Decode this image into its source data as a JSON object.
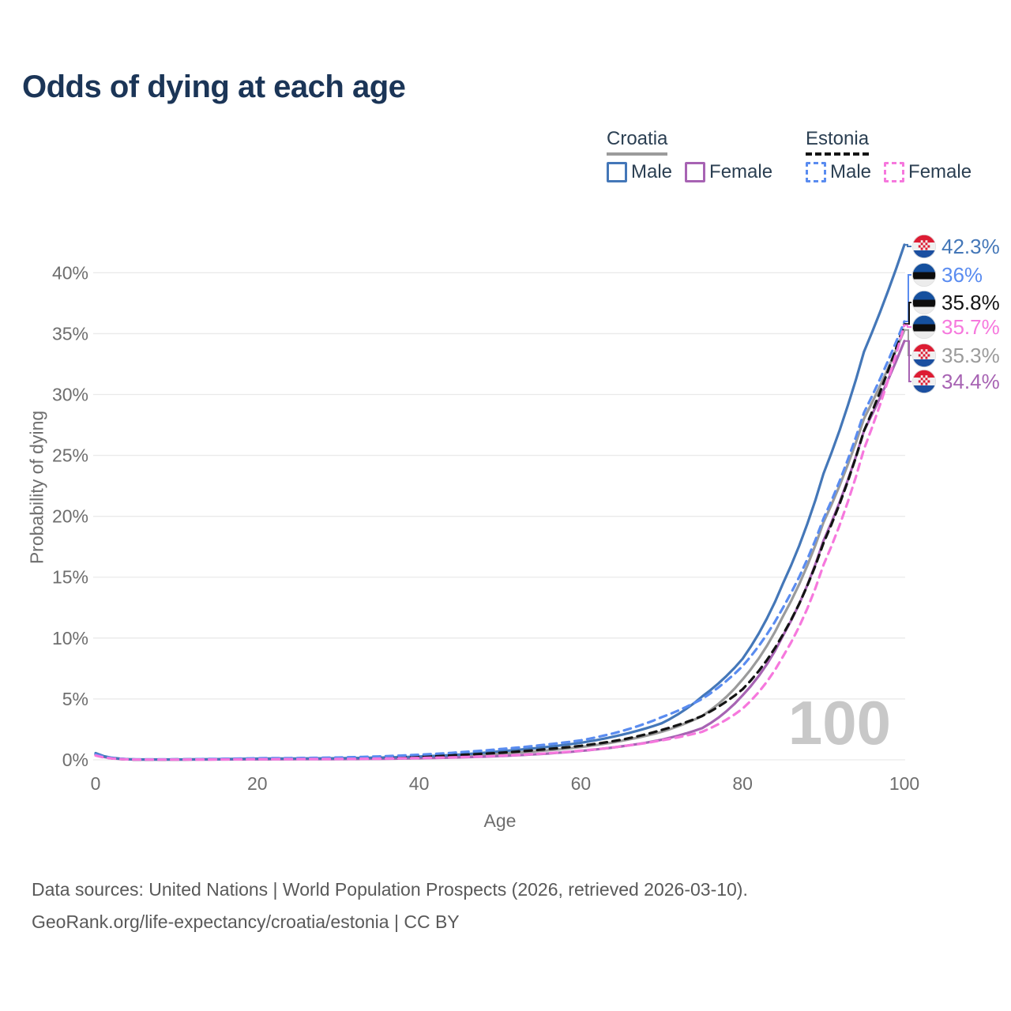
{
  "title": "Odds of dying at each age",
  "legend": {
    "groups": [
      {
        "country": "Croatia",
        "line_style": "solid",
        "line_color": "#9b9b9b",
        "items": [
          {
            "label": "Male",
            "color": "#4477b8"
          },
          {
            "label": "Female",
            "color": "#a763b3"
          }
        ]
      },
      {
        "country": "Estonia",
        "line_style": "dashed",
        "line_color": "#141414",
        "items": [
          {
            "label": "Male",
            "color": "#5a8cf0"
          },
          {
            "label": "Female",
            "color": "#f678dd"
          }
        ]
      }
    ]
  },
  "chart_data": {
    "type": "line",
    "title": "Odds of dying at each age",
    "xlabel": "Age",
    "ylabel": "Probability of dying",
    "xlim": [
      0,
      100
    ],
    "ylim_pct": [
      0,
      45
    ],
    "x_ticks": [
      0,
      20,
      40,
      60,
      80,
      100
    ],
    "y_ticks": [
      {
        "value": 0,
        "label": "0%"
      },
      {
        "value": 5,
        "label": "5%"
      },
      {
        "value": 10,
        "label": "10%"
      },
      {
        "value": 15,
        "label": "15%"
      },
      {
        "value": 20,
        "label": "20%"
      },
      {
        "value": 25,
        "label": "25%"
      },
      {
        "value": 30,
        "label": "30%"
      },
      {
        "value": 35,
        "label": "35%"
      },
      {
        "value": 40,
        "label": "40%"
      }
    ],
    "grid": "horizontal-only",
    "legend_position": "top-right",
    "x": [
      0,
      5,
      10,
      15,
      20,
      25,
      30,
      35,
      40,
      45,
      50,
      55,
      60,
      65,
      70,
      75,
      80,
      85,
      90,
      95,
      100
    ],
    "series": [
      {
        "id": "croatia_total",
        "name": "Croatia",
        "color": "#9b9b9b",
        "dash": false,
        "values_pct": [
          0.5,
          0.025,
          0.025,
          0.05,
          0.07,
          0.08,
          0.1,
          0.13,
          0.2,
          0.31,
          0.5,
          0.73,
          1.05,
          1.55,
          2.3,
          3.6,
          6.6,
          11.8,
          19.5,
          28.0,
          35.3
        ]
      },
      {
        "id": "croatia_female",
        "name": "Croatia Female",
        "color": "#a763b3",
        "dash": false,
        "values_pct": [
          0.45,
          0.02,
          0.02,
          0.03,
          0.04,
          0.05,
          0.06,
          0.08,
          0.13,
          0.2,
          0.31,
          0.48,
          0.73,
          1.1,
          1.65,
          2.6,
          5.3,
          10.2,
          18.0,
          27.0,
          34.4
        ]
      },
      {
        "id": "croatia_male",
        "name": "Croatia Male",
        "color": "#4477b8",
        "dash": false,
        "values_pct": [
          0.55,
          0.03,
          0.03,
          0.06,
          0.1,
          0.11,
          0.13,
          0.18,
          0.27,
          0.43,
          0.7,
          1.0,
          1.4,
          2.05,
          3.0,
          5.2,
          8.3,
          14.5,
          23.5,
          33.5,
          42.3
        ]
      },
      {
        "id": "estonia_total",
        "name": "Estonia",
        "color": "#141414",
        "dash": true,
        "values_pct": [
          0.4,
          0.02,
          0.03,
          0.06,
          0.09,
          0.1,
          0.13,
          0.18,
          0.27,
          0.4,
          0.58,
          0.83,
          1.15,
          1.65,
          2.45,
          3.6,
          5.8,
          10.3,
          17.8,
          27.0,
          35.8
        ]
      },
      {
        "id": "estonia_male",
        "name": "Estonia Male",
        "color": "#5a8cf0",
        "dash": true,
        "values_pct": [
          0.45,
          0.03,
          0.04,
          0.08,
          0.13,
          0.15,
          0.19,
          0.28,
          0.42,
          0.62,
          0.88,
          1.2,
          1.6,
          2.35,
          3.5,
          5.0,
          7.7,
          12.5,
          19.8,
          28.5,
          36.0
        ]
      },
      {
        "id": "estonia_female",
        "name": "Estonia Female",
        "color": "#f678dd",
        "dash": true,
        "values_pct": [
          0.35,
          0.02,
          0.02,
          0.03,
          0.05,
          0.06,
          0.07,
          0.1,
          0.15,
          0.22,
          0.33,
          0.5,
          0.75,
          1.1,
          1.6,
          2.3,
          4.2,
          8.5,
          16.0,
          25.5,
          35.7
        ]
      }
    ],
    "end_labels": [
      {
        "flag": "croatia",
        "text": "42.3%",
        "value_pct": 42.3,
        "color": "#4477b8",
        "series": "croatia_male"
      },
      {
        "flag": "estonia",
        "text": "36%",
        "value_pct": 36.0,
        "color": "#5a8cf0",
        "series": "estonia_male"
      },
      {
        "flag": "estonia",
        "text": "35.8%",
        "value_pct": 35.8,
        "color": "#141414",
        "series": "estonia_total"
      },
      {
        "flag": "estonia",
        "text": "35.7%",
        "value_pct": 35.7,
        "color": "#f678dd",
        "series": "estonia_female"
      },
      {
        "flag": "croatia",
        "text": "35.3%",
        "value_pct": 35.3,
        "color": "#9b9b9b",
        "series": "croatia_total"
      },
      {
        "flag": "croatia",
        "text": "34.4%",
        "value_pct": 34.4,
        "color": "#a763b3",
        "series": "croatia_female"
      }
    ],
    "watermark": "100"
  },
  "flag_colors": {
    "croatia": {
      "red": "#dd1c33",
      "white": "#f0f0f0",
      "blue": "#1b4fa0"
    },
    "estonia": {
      "blue": "#15509e",
      "black": "#0d0d0d",
      "white": "#ececec"
    }
  },
  "footer": {
    "line1": "Data sources: United Nations | World Population Prospects (2026, retrieved 2026-03-10).",
    "line2": "GeoRank.org/life-expectancy/croatia/estonia | CC BY"
  }
}
